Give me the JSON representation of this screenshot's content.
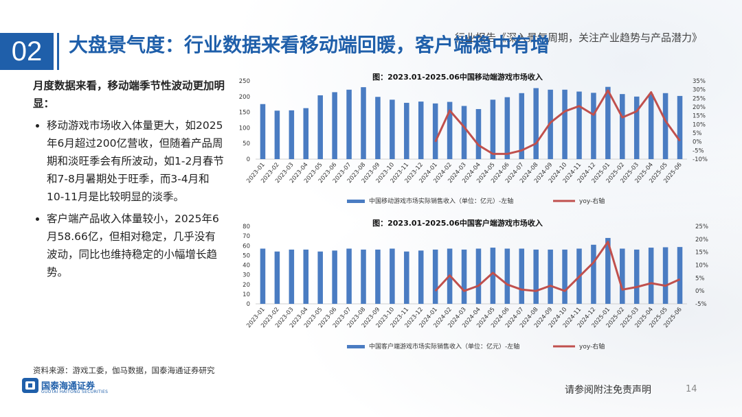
{
  "header": {
    "section_number": "02",
    "title": "大盘景气度：行业数据来看移动端回暖，客户端稳中有增",
    "top_note": "行业报告《深入景气周期，关注产业趋势与产品潜力》"
  },
  "left": {
    "intro": "月度数据来看，移动端季节性波动更加明显：",
    "bullets": [
      "移动游戏市场收入体量更大，如2025年6月超过200亿营收，但随着产品周期和淡旺季会有所波动，如1-2月春节和7-8月暑期处于旺季，而3-4月和10-11月是比较明显的淡季。",
      "客户端产品收入体量较小，2025年6月58.66亿，但相对稳定，几乎没有波动，同比也维持稳定的小幅增长趋势。"
    ]
  },
  "footer": {
    "source": "资料来源：游戏工委，伽马数据，国泰海通证券研究",
    "logo_cn": "国泰海通证券",
    "logo_en": "GUOTAI HAITONG SECURITIES",
    "disclaimer": "请参阅附注免责声明",
    "page": "14"
  },
  "colors": {
    "bar": "#4a7cc2",
    "line": "#c0504d",
    "brand": "#1f5faa"
  },
  "chart_data": [
    {
      "type": "bar",
      "title": "图：2023.01-2025.06中国移动端游戏市场收入",
      "categories": [
        "2023-01",
        "2023-02",
        "2023-03",
        "2023-04",
        "2023-05",
        "2023-06",
        "2023-07",
        "2023-08",
        "2023-09",
        "2023-10",
        "2023-11",
        "2023-12",
        "2024-01",
        "2024-02",
        "2024-03",
        "2024-04",
        "2024-05",
        "2024-06",
        "2024-07",
        "2024-08",
        "2024-09",
        "2024-10",
        "2024-11",
        "2024-12",
        "2025-01",
        "2025-02",
        "2025-03",
        "2025-04",
        "2025-05",
        "2025-06"
      ],
      "series": [
        {
          "name": "中国移动游戏市场实际销售收入（单位：亿元）-左轴",
          "kind": "bar",
          "axis": "left",
          "values": [
            176,
            155,
            156,
            163,
            204,
            214,
            222,
            230,
            199,
            190,
            180,
            184,
            178,
            183,
            170,
            160,
            190,
            198,
            211,
            227,
            222,
            222,
            216,
            212,
            231,
            208,
            200,
            207,
            211,
            202
          ]
        },
        {
          "name": "yoy-右轴",
          "kind": "line",
          "axis": "right",
          "values": [
            null,
            null,
            null,
            null,
            null,
            null,
            null,
            null,
            null,
            null,
            null,
            null,
            0.0,
            18.0,
            8.5,
            -2.0,
            -7.0,
            -7.0,
            -5.0,
            -1.0,
            11.0,
            17.5,
            20.5,
            15.5,
            29.5,
            14.0,
            17.5,
            28.5,
            12.0,
            0.5
          ]
        }
      ],
      "y_left": {
        "min": 0,
        "max": 250,
        "ticks": [
          "0",
          "50",
          "100",
          "150",
          "200",
          "250"
        ]
      },
      "y_right": {
        "min": -10,
        "max": 35,
        "ticks": [
          "-10%",
          "-5%",
          "0%",
          "5%",
          "10%",
          "15%",
          "20%",
          "25%",
          "30%",
          "35%"
        ]
      },
      "legend_position": "bottom"
    },
    {
      "type": "bar",
      "title": "图：2023.01-2025.06中国客户端游戏市场收入",
      "categories": [
        "2023-01",
        "2023-02",
        "2023-03",
        "2023-04",
        "2023-05",
        "2023-06",
        "2023-07",
        "2023-08",
        "2023-09",
        "2023-10",
        "2023-11",
        "2023-12",
        "2024-01",
        "2024-02",
        "2024-03",
        "2024-04",
        "2024-05",
        "2024-06",
        "2024-07",
        "2024-08",
        "2024-09",
        "2024-10",
        "2024-11",
        "2024-12",
        "2025-01",
        "2025-02",
        "2025-03",
        "2025-04",
        "2025-05",
        "2025-06"
      ],
      "series": [
        {
          "name": "中国客户端游戏市场实际销售收入（单位：亿元）-左轴",
          "kind": "bar",
          "axis": "left",
          "values": [
            57,
            54,
            56,
            56,
            54,
            55,
            57,
            56,
            56,
            57,
            54,
            55,
            56,
            57,
            56,
            57,
            58,
            57,
            57,
            56,
            56,
            56,
            57,
            61,
            68,
            57,
            56,
            58,
            58.4,
            58.66
          ]
        },
        {
          "name": "yoy-右轴",
          "kind": "line",
          "axis": "right",
          "values": [
            null,
            null,
            null,
            null,
            null,
            null,
            null,
            null,
            null,
            null,
            null,
            null,
            0.0,
            6.0,
            0.0,
            2.0,
            7.0,
            2.5,
            0.5,
            0.0,
            2.0,
            0.0,
            5.5,
            11.0,
            19.0,
            0.5,
            1.5,
            3.0,
            2.0,
            4.5
          ]
        }
      ],
      "y_left": {
        "min": 0,
        "max": 80,
        "ticks": [
          "0",
          "10",
          "20",
          "30",
          "40",
          "50",
          "60",
          "70",
          "80"
        ]
      },
      "y_right": {
        "min": -5,
        "max": 25,
        "ticks": [
          "-5%",
          "0%",
          "5%",
          "10%",
          "15%",
          "20%",
          "25%"
        ]
      },
      "legend_position": "bottom"
    }
  ]
}
